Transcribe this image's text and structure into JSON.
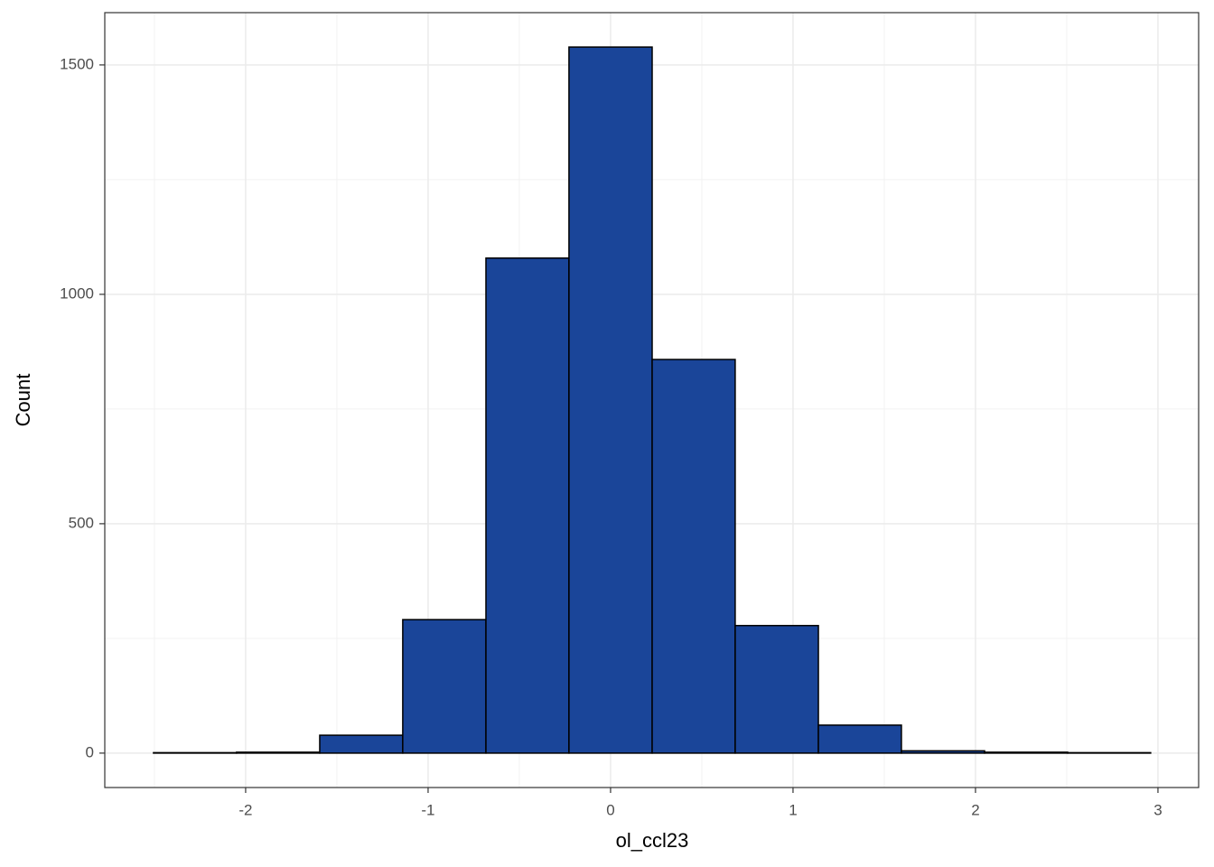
{
  "chart_data": {
    "type": "histogram",
    "x_label": "ol_ccl23",
    "y_label": "Count",
    "bins": [
      -2.505,
      -2.05,
      -1.594,
      -1.139,
      -0.683,
      -0.228,
      0.228,
      0.683,
      1.139,
      1.594,
      2.05,
      2.505,
      2.96
    ],
    "values": [
      1,
      2,
      39,
      291,
      1079,
      1539,
      858,
      278,
      61,
      5,
      2,
      1
    ],
    "color": "#1a4599",
    "xlim": [
      -2.772,
      3.223
    ],
    "xticks": [
      -2,
      -1,
      0,
      1,
      2,
      3
    ],
    "ylim": [
      -75,
      1614
    ],
    "yticks": [
      0,
      500,
      1000,
      1500
    ],
    "grid": true
  }
}
